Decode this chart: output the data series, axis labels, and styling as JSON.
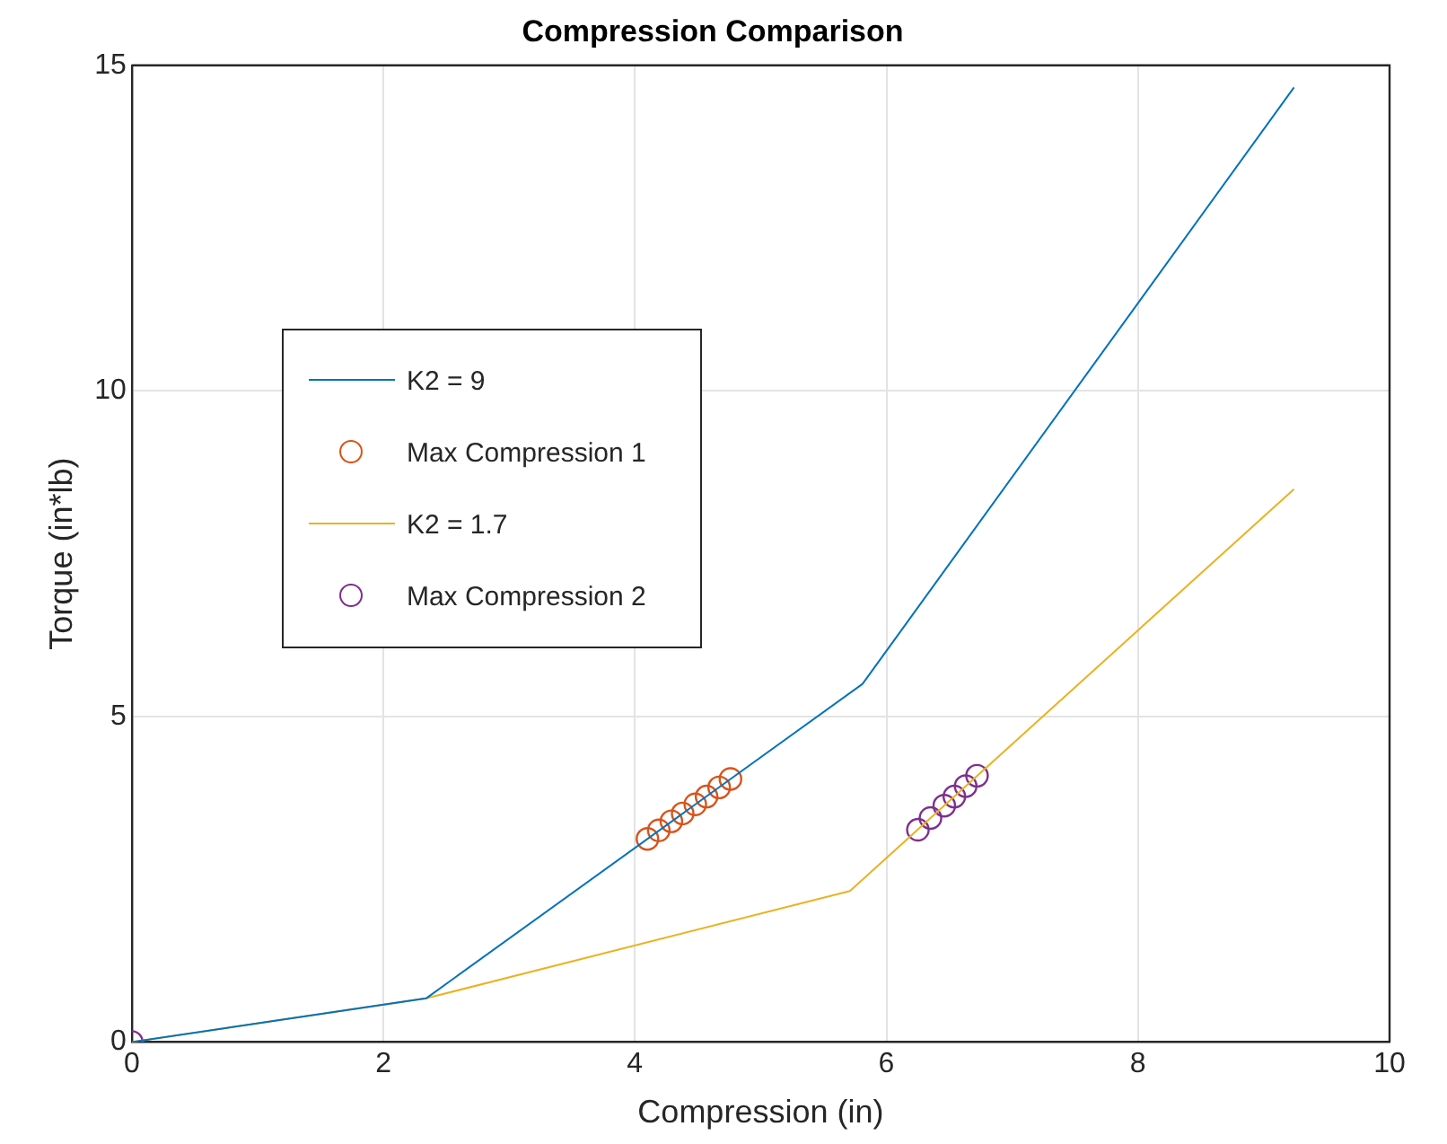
{
  "chart_data": {
    "type": "line",
    "title": "Compression Comparison",
    "xlabel": "Compression (in)",
    "ylabel": "Torque (in*lb)",
    "xlim": [
      0,
      10
    ],
    "xticks": [
      0,
      2,
      4,
      6,
      8,
      10
    ],
    "ylim": [
      0,
      15
    ],
    "yticks": [
      0,
      5,
      10,
      15
    ],
    "grid": true,
    "legend": "top left",
    "series": [
      {
        "name": "K2 = 9",
        "type": "line",
        "color": "#0072bd",
        "marker": "none",
        "x": [
          0,
          2.34,
          5.81,
          9.24
        ],
        "values": [
          0,
          0.67,
          5.5,
          14.66
        ]
      },
      {
        "name": "Max Compression 1",
        "type": "scatter",
        "color": "#d95319",
        "marker": "circle",
        "x": [
          4.1,
          4.19,
          4.29,
          4.38,
          4.48,
          4.57,
          4.67,
          4.76
        ],
        "values": [
          3.12,
          3.25,
          3.39,
          3.51,
          3.65,
          3.77,
          3.91,
          4.04
        ]
      },
      {
        "name": "K2 = 1.7",
        "type": "line",
        "color": "#edb120",
        "marker": "none",
        "x": [
          0,
          2.34,
          5.71,
          9.24
        ],
        "values": [
          0,
          0.67,
          2.32,
          8.49
        ]
      },
      {
        "name": "Max Compression 2",
        "type": "scatter",
        "color": "#7e2f8e",
        "marker": "circle",
        "x": [
          0,
          6.25,
          6.35,
          6.46,
          6.54,
          6.63,
          6.72
        ],
        "values": [
          0,
          3.26,
          3.44,
          3.63,
          3.77,
          3.93,
          4.09
        ]
      }
    ]
  }
}
